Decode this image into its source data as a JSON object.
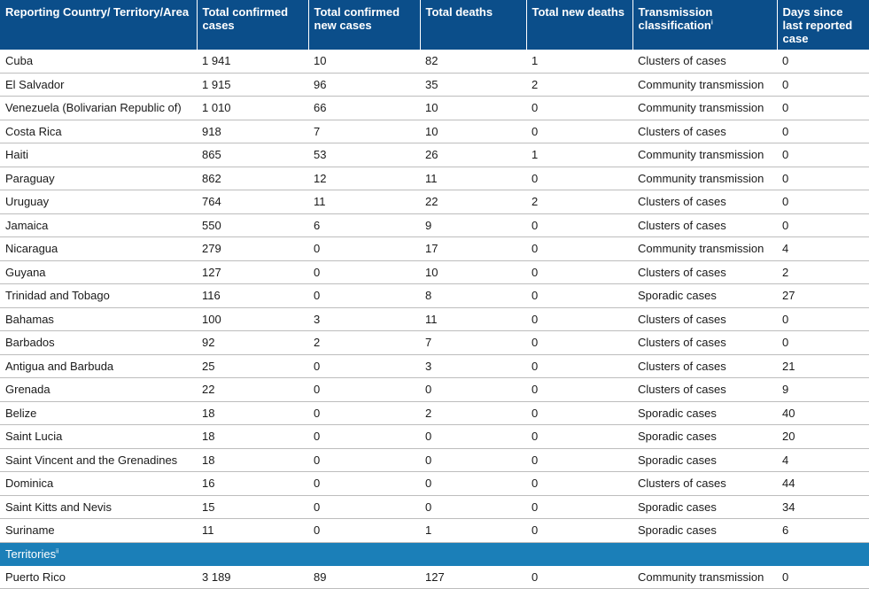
{
  "headers": [
    {
      "label": "Reporting Country/ Territory/Area",
      "sup": ""
    },
    {
      "label": "Total confirmed cases",
      "sup": ""
    },
    {
      "label": "Total confirmed new cases",
      "sup": ""
    },
    {
      "label": "Total deaths",
      "sup": ""
    },
    {
      "label": "Total new deaths",
      "sup": ""
    },
    {
      "label": "Transmission classification",
      "sup": "i"
    },
    {
      "label": "Days since last reported case",
      "sup": ""
    }
  ],
  "rows": [
    [
      "Cuba",
      "1 941",
      "10",
      "82",
      "1",
      "Clusters of cases",
      "0"
    ],
    [
      "El Salvador",
      "1 915",
      "96",
      "35",
      "2",
      "Community transmission",
      "0"
    ],
    [
      "Venezuela (Bolivarian Republic of)",
      "1 010",
      "66",
      "10",
      "0",
      "Community transmission",
      "0"
    ],
    [
      "Costa Rica",
      "918",
      "7",
      "10",
      "0",
      "Clusters of cases",
      "0"
    ],
    [
      "Haiti",
      "865",
      "53",
      "26",
      "1",
      "Community transmission",
      "0"
    ],
    [
      "Paraguay",
      "862",
      "12",
      "11",
      "0",
      "Community transmission",
      "0"
    ],
    [
      "Uruguay",
      "764",
      "11",
      "22",
      "2",
      "Clusters of cases",
      "0"
    ],
    [
      "Jamaica",
      "550",
      "6",
      "9",
      "0",
      "Clusters of cases",
      "0"
    ],
    [
      "Nicaragua",
      "279",
      "0",
      "17",
      "0",
      "Community transmission",
      "4"
    ],
    [
      "Guyana",
      "127",
      "0",
      "10",
      "0",
      "Clusters of cases",
      "2"
    ],
    [
      "Trinidad and Tobago",
      "116",
      "0",
      "8",
      "0",
      "Sporadic cases",
      "27"
    ],
    [
      "Bahamas",
      "100",
      "3",
      "11",
      "0",
      "Clusters of cases",
      "0"
    ],
    [
      "Barbados",
      "92",
      "2",
      "7",
      "0",
      "Clusters of cases",
      "0"
    ],
    [
      "Antigua and Barbuda",
      "25",
      "0",
      "3",
      "0",
      "Clusters of cases",
      "21"
    ],
    [
      "Grenada",
      "22",
      "0",
      "0",
      "0",
      "Clusters of cases",
      "9"
    ],
    [
      "Belize",
      "18",
      "0",
      "2",
      "0",
      "Sporadic cases",
      "40"
    ],
    [
      "Saint Lucia",
      "18",
      "0",
      "0",
      "0",
      "Sporadic cases",
      "20"
    ],
    [
      "Saint Vincent and the Grenadines",
      "18",
      "0",
      "0",
      "0",
      "Sporadic cases",
      "4"
    ],
    [
      "Dominica",
      "16",
      "0",
      "0",
      "0",
      "Clusters of cases",
      "44"
    ],
    [
      "Saint Kitts and Nevis",
      "15",
      "0",
      "0",
      "0",
      "Sporadic cases",
      "34"
    ],
    [
      "Suriname",
      "11",
      "0",
      "1",
      "0",
      "Sporadic cases",
      "6"
    ]
  ],
  "section": {
    "label": "Territories",
    "sup": "ii"
  },
  "territory_rows": [
    [
      "Puerto Rico",
      "3 189",
      "89",
      "127",
      "0",
      "Community transmission",
      "0"
    ]
  ],
  "colors": {
    "header_bg": "#0b4e8a",
    "section_bg": "#1b7fb8"
  }
}
